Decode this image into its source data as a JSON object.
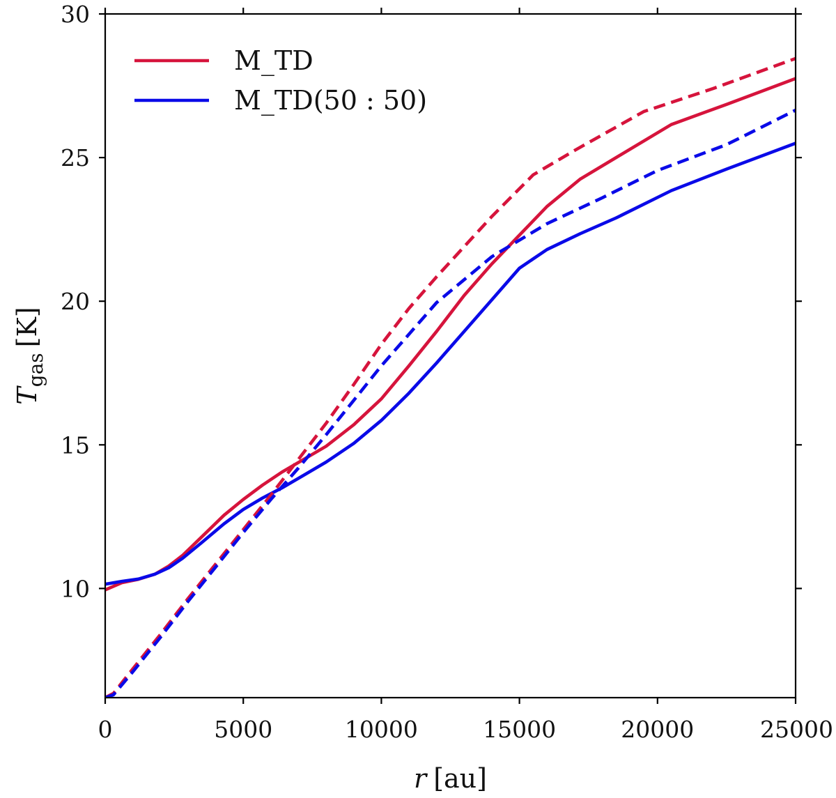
{
  "chart_data": {
    "type": "line",
    "title": "",
    "xlabel": {
      "var": "r",
      "unit": "[au]"
    },
    "ylabel": {
      "var": "T",
      "sub": "gas",
      "unit": "[K]"
    },
    "xlim": [
      0,
      25000
    ],
    "ylim": [
      6.2,
      30
    ],
    "xticks": [
      0,
      5000,
      10000,
      15000,
      20000,
      25000
    ],
    "xtick_labels": [
      "0",
      "5000",
      "10000",
      "15000",
      "20000",
      "25000"
    ],
    "yticks": [
      10,
      15,
      20,
      25,
      30
    ],
    "ytick_labels": [
      "10",
      "15",
      "20",
      "25",
      "30"
    ],
    "grid": false,
    "legend_position": "top-left",
    "colors": {
      "red": "#d6143c",
      "blue": "#0a0ae8",
      "axis": "#000000"
    },
    "series": [
      {
        "name": "M_TD",
        "color": "red",
        "style": "solid",
        "show_in_legend": true,
        "points": [
          [
            0,
            9.95
          ],
          [
            600,
            10.2
          ],
          [
            1200,
            10.32
          ],
          [
            1800,
            10.5
          ],
          [
            2300,
            10.78
          ],
          [
            2800,
            11.15
          ],
          [
            3500,
            11.8
          ],
          [
            4300,
            12.55
          ],
          [
            5000,
            13.1
          ],
          [
            5700,
            13.6
          ],
          [
            6400,
            14.05
          ],
          [
            7200,
            14.5
          ],
          [
            8000,
            14.95
          ],
          [
            9000,
            15.7
          ],
          [
            10000,
            16.6
          ],
          [
            11000,
            17.75
          ],
          [
            12000,
            18.95
          ],
          [
            13000,
            20.2
          ],
          [
            14000,
            21.3
          ],
          [
            15000,
            22.3
          ],
          [
            16000,
            23.3
          ],
          [
            17200,
            24.25
          ],
          [
            18500,
            25.0
          ],
          [
            20500,
            26.15
          ],
          [
            22500,
            26.85
          ],
          [
            25000,
            27.75
          ]
        ]
      },
      {
        "name": "M_TD(50 : 50)",
        "color": "blue",
        "style": "solid",
        "show_in_legend": true,
        "points": [
          [
            0,
            10.15
          ],
          [
            600,
            10.25
          ],
          [
            1200,
            10.33
          ],
          [
            1800,
            10.5
          ],
          [
            2300,
            10.72
          ],
          [
            2800,
            11.05
          ],
          [
            3500,
            11.6
          ],
          [
            4300,
            12.25
          ],
          [
            5000,
            12.75
          ],
          [
            5700,
            13.15
          ],
          [
            6400,
            13.5
          ],
          [
            7200,
            13.95
          ],
          [
            8000,
            14.4
          ],
          [
            9000,
            15.05
          ],
          [
            10000,
            15.85
          ],
          [
            11000,
            16.8
          ],
          [
            12000,
            17.85
          ],
          [
            13000,
            18.95
          ],
          [
            14000,
            20.05
          ],
          [
            15000,
            21.15
          ],
          [
            16000,
            21.8
          ],
          [
            17200,
            22.35
          ],
          [
            18500,
            22.9
          ],
          [
            20500,
            23.85
          ],
          [
            22500,
            24.6
          ],
          [
            25000,
            25.5
          ]
        ]
      },
      {
        "name": "M_TD (dashed)",
        "color": "red",
        "style": "dashed",
        "show_in_legend": false,
        "points": [
          [
            0,
            6.2
          ],
          [
            300,
            6.35
          ],
          [
            1000,
            7.2
          ],
          [
            2000,
            8.4
          ],
          [
            3000,
            9.65
          ],
          [
            4000,
            10.85
          ],
          [
            5000,
            12.05
          ],
          [
            6000,
            13.25
          ],
          [
            7000,
            14.5
          ],
          [
            8000,
            15.75
          ],
          [
            9000,
            17.1
          ],
          [
            10000,
            18.5
          ],
          [
            11000,
            19.75
          ],
          [
            12000,
            20.85
          ],
          [
            13000,
            21.9
          ],
          [
            14000,
            22.95
          ],
          [
            15500,
            24.4
          ],
          [
            17000,
            25.25
          ],
          [
            19500,
            26.6
          ],
          [
            22000,
            27.4
          ],
          [
            25000,
            28.45
          ]
        ]
      },
      {
        "name": "M_TD(50 : 50) (dashed)",
        "color": "blue",
        "style": "dashed",
        "show_in_legend": false,
        "points": [
          [
            0,
            6.2
          ],
          [
            300,
            6.3
          ],
          [
            1000,
            7.1
          ],
          [
            2000,
            8.3
          ],
          [
            3000,
            9.55
          ],
          [
            4000,
            10.75
          ],
          [
            5000,
            11.95
          ],
          [
            6000,
            13.1
          ],
          [
            7000,
            14.2
          ],
          [
            8000,
            15.35
          ],
          [
            9000,
            16.55
          ],
          [
            10000,
            17.75
          ],
          [
            11000,
            18.85
          ],
          [
            12000,
            19.95
          ],
          [
            13000,
            20.75
          ],
          [
            14000,
            21.55
          ],
          [
            16000,
            22.7
          ],
          [
            18000,
            23.6
          ],
          [
            20000,
            24.55
          ],
          [
            22500,
            25.45
          ],
          [
            25000,
            26.65
          ]
        ]
      }
    ]
  }
}
